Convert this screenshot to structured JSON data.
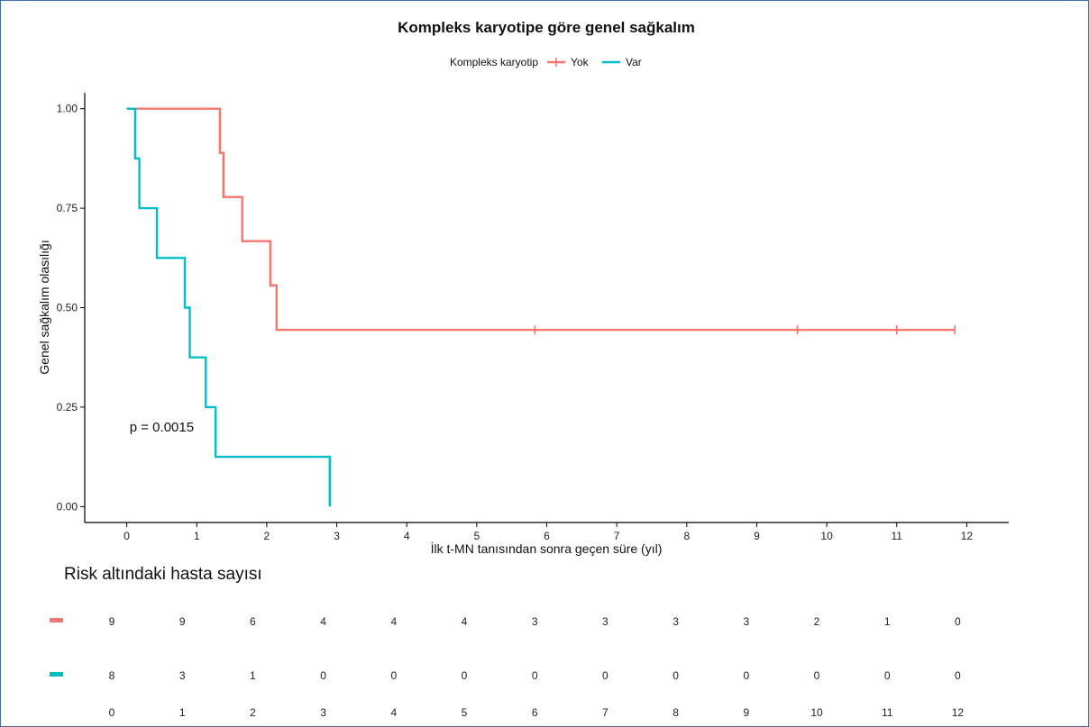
{
  "chart_data": {
    "type": "line",
    "title": "Kompleks karyotipe göre genel sağkalım",
    "legend_title": "Kompleks karyotip",
    "legend_position": "top",
    "xlabel": "İlk t-MN tanısından sonra geçen süre (yıl)",
    "ylabel": "Genel sağkalım olasılığı",
    "xlim": [
      -0.6,
      12.6
    ],
    "ylim": [
      -0.04,
      1.04
    ],
    "x_ticks": [
      0,
      1,
      2,
      3,
      4,
      5,
      6,
      7,
      8,
      9,
      10,
      11,
      12
    ],
    "y_ticks": [
      0,
      0.25,
      0.5,
      0.75,
      1.0
    ],
    "y_tick_labels": [
      "0.00",
      "0.25",
      "0.50",
      "0.75",
      "1.00"
    ],
    "grid": false,
    "annotation": "p = 0.0015",
    "annotation_at": {
      "x": 0.5,
      "y": 0.2
    },
    "series": [
      {
        "name": "Yok",
        "color": "#F8766D",
        "step_x": [
          0,
          1.33,
          1.38,
          1.65,
          2.05,
          2.14,
          11.83
        ],
        "step_y": [
          1.0,
          0.889,
          0.778,
          0.667,
          0.556,
          0.444,
          0.444
        ],
        "censor_x": [
          5.83,
          9.58,
          11.0,
          11.83
        ],
        "censor_y": [
          0.444,
          0.444,
          0.444,
          0.444
        ]
      },
      {
        "name": "Var",
        "color": "#00BFC4",
        "step_x": [
          0,
          0.12,
          0.18,
          0.43,
          0.83,
          0.9,
          1.13,
          1.27,
          2.9
        ],
        "step_y": [
          1.0,
          0.875,
          0.75,
          0.625,
          0.5,
          0.375,
          0.25,
          0.125,
          0.0
        ],
        "censor_x": [],
        "censor_y": []
      }
    ]
  },
  "risk_table": {
    "title": "Risk altındaki hasta sayısı",
    "times": [
      "0",
      "1",
      "2",
      "3",
      "4",
      "5",
      "6",
      "7",
      "8",
      "9",
      "10",
      "11",
      "12"
    ],
    "rows": [
      {
        "color": "#F8766D",
        "values": [
          "9",
          "9",
          "6",
          "4",
          "4",
          "4",
          "3",
          "3",
          "3",
          "3",
          "2",
          "1",
          "0"
        ]
      },
      {
        "color": "#00BFC4",
        "values": [
          "8",
          "3",
          "1",
          "0",
          "0",
          "0",
          "0",
          "0",
          "0",
          "0",
          "0",
          "0",
          "0"
        ]
      }
    ]
  }
}
